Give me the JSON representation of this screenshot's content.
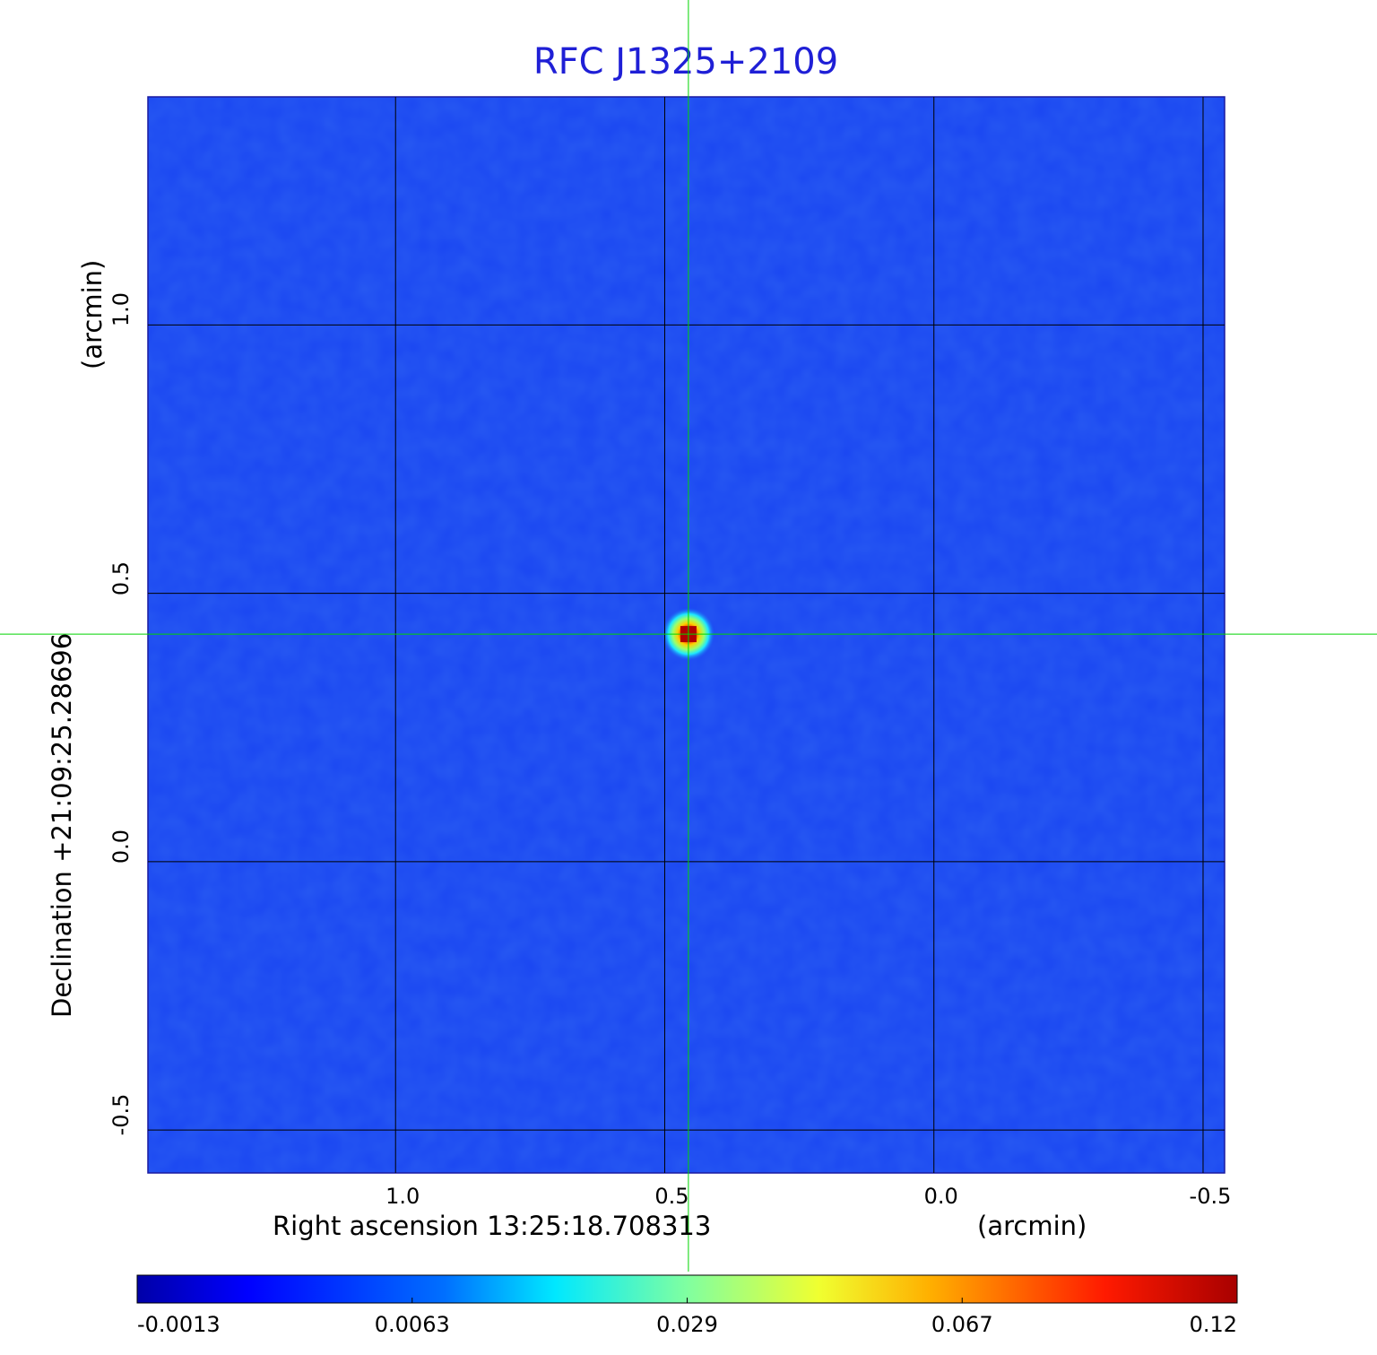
{
  "chart_data": {
    "type": "heatmap",
    "title": "RFC J1325+2109",
    "xlabel": "Right ascension  13:25:18.708313",
    "xunit": "(arcmin)",
    "ylabel": "Declination  +21:09:25.28696",
    "yunit": "(arcmin)",
    "x_ticks": [
      "1.0",
      "0.5",
      "0.0",
      "-0.5"
    ],
    "x_tick_values": [
      1.0,
      0.5,
      0.0,
      -0.5
    ],
    "xlim": [
      1.46,
      -0.54
    ],
    "y_ticks": [
      "1.0",
      "0.5",
      "0.0",
      "-0.5"
    ],
    "y_tick_values": [
      1.0,
      0.5,
      0.0,
      -0.5
    ],
    "ylim": [
      -0.58,
      1.425
    ],
    "grid": true,
    "crosshair": {
      "x": 0.456,
      "y": 0.424,
      "color": "#00d400"
    },
    "source_peak": {
      "x": 0.456,
      "y": 0.424,
      "value": 0.12
    },
    "colorbar": {
      "ticks": [
        "-0.0013",
        "0.0063",
        "0.029",
        "0.067",
        "0.12"
      ],
      "tick_values": [
        -0.0013,
        0.0063,
        0.029,
        0.067,
        0.12
      ],
      "colormap": "jet",
      "orientation": "horizontal",
      "placement": "bottom"
    },
    "colors": {
      "background_field": "#1a46f2",
      "title": "#1f1fd6",
      "crosshair": "#00d400",
      "grid": "#000000"
    }
  }
}
